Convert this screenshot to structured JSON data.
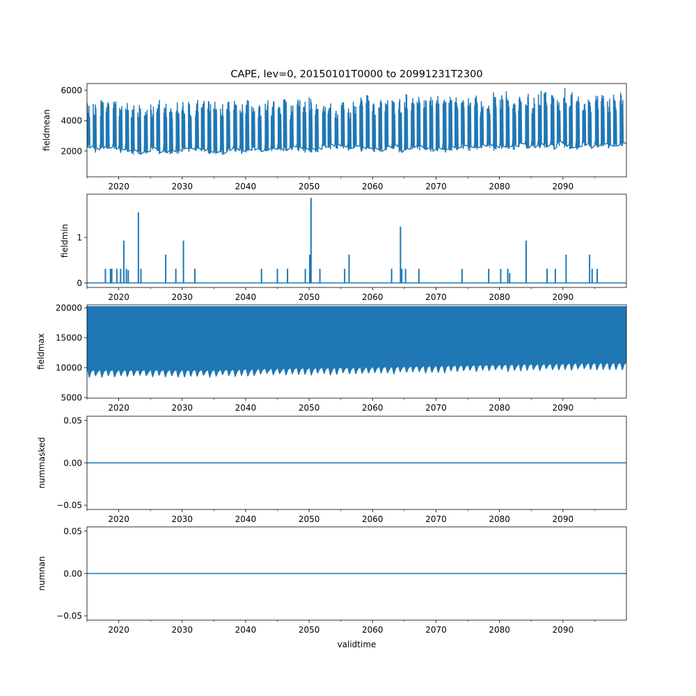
{
  "figure": {
    "title": "CAPE, lev=0, 20150101T0000 to 20991231T2300"
  },
  "chart_data": [
    {
      "type": "line",
      "ylabel": "fieldmean",
      "xlabel": "",
      "xlim": [
        2015.0,
        2100.0
      ],
      "xticks": [
        2020,
        2030,
        2040,
        2050,
        2060,
        2070,
        2080,
        2090
      ],
      "ylim": [
        300,
        6450
      ],
      "yticks": [
        2000,
        4000,
        6000
      ],
      "ytick_labels": [
        "2000",
        "4000",
        "6000"
      ],
      "color": "#1f77b4",
      "series": [
        {
          "pattern": "annual_oscillation",
          "x": [
            2015,
            2025,
            2035,
            2045,
            2055,
            2065,
            2075,
            2085,
            2095,
            2100
          ],
          "upper": [
            5250,
            5050,
            5250,
            5300,
            5300,
            5450,
            5500,
            5650,
            5750,
            5750
          ],
          "lower": [
            2100,
            1900,
            1900,
            2000,
            2050,
            2050,
            2100,
            2200,
            2250,
            2300
          ],
          "peaks": [
            {
              "x": 2090.3,
              "y": 6150
            }
          ]
        }
      ]
    },
    {
      "type": "line",
      "ylabel": "fieldmin",
      "xlabel": "",
      "xlim": [
        2015.0,
        2100.0
      ],
      "xticks": [
        2020,
        2030,
        2040,
        2050,
        2060,
        2070,
        2080,
        2090
      ],
      "ylim": [
        -0.1,
        1.95
      ],
      "yticks": [
        0,
        1
      ],
      "ytick_labels": [
        "0",
        "1"
      ],
      "color": "#1f77b4",
      "series": [
        {
          "pattern": "spikes",
          "baseline": 0,
          "spikes": [
            {
              "x": 2017.9,
              "y": 0.31
            },
            {
              "x": 2018.7,
              "y": 0.31
            },
            {
              "x": 2018.9,
              "y": 0.31
            },
            {
              "x": 2019.7,
              "y": 0.31
            },
            {
              "x": 2020.3,
              "y": 0.31
            },
            {
              "x": 2020.8,
              "y": 0.93
            },
            {
              "x": 2021.2,
              "y": 0.31
            },
            {
              "x": 2021.5,
              "y": 0.28
            },
            {
              "x": 2023.1,
              "y": 1.55
            },
            {
              "x": 2023.5,
              "y": 0.31
            },
            {
              "x": 2027.4,
              "y": 0.62
            },
            {
              "x": 2029.0,
              "y": 0.31
            },
            {
              "x": 2030.2,
              "y": 0.93
            },
            {
              "x": 2032.0,
              "y": 0.31
            },
            {
              "x": 2042.5,
              "y": 0.31
            },
            {
              "x": 2045.0,
              "y": 0.31
            },
            {
              "x": 2046.6,
              "y": 0.31
            },
            {
              "x": 2049.4,
              "y": 0.31
            },
            {
              "x": 2050.1,
              "y": 0.62
            },
            {
              "x": 2050.3,
              "y": 1.87
            },
            {
              "x": 2051.7,
              "y": 0.31
            },
            {
              "x": 2055.6,
              "y": 0.31
            },
            {
              "x": 2056.3,
              "y": 0.62
            },
            {
              "x": 2063.0,
              "y": 0.31
            },
            {
              "x": 2064.4,
              "y": 1.24
            },
            {
              "x": 2064.6,
              "y": 0.31
            },
            {
              "x": 2065.2,
              "y": 0.31
            },
            {
              "x": 2067.3,
              "y": 0.31
            },
            {
              "x": 2074.1,
              "y": 0.31
            },
            {
              "x": 2078.3,
              "y": 0.31
            },
            {
              "x": 2080.2,
              "y": 0.31
            },
            {
              "x": 2081.3,
              "y": 0.31
            },
            {
              "x": 2081.6,
              "y": 0.22
            },
            {
              "x": 2084.2,
              "y": 0.93
            },
            {
              "x": 2087.5,
              "y": 0.31
            },
            {
              "x": 2088.8,
              "y": 0.31
            },
            {
              "x": 2090.5,
              "y": 0.62
            },
            {
              "x": 2094.2,
              "y": 0.62
            },
            {
              "x": 2094.6,
              "y": 0.31
            },
            {
              "x": 2095.4,
              "y": 0.31
            }
          ]
        }
      ]
    },
    {
      "type": "line",
      "ylabel": "fieldmax",
      "xlabel": "",
      "xlim": [
        2015.0,
        2100.0
      ],
      "xticks": [
        2020,
        2030,
        2040,
        2050,
        2060,
        2070,
        2080,
        2090
      ],
      "ylim": [
        4900,
        20500
      ],
      "yticks": [
        5000,
        10000,
        15000,
        20000
      ],
      "ytick_labels": [
        "5000",
        "10000",
        "15000",
        "20000"
      ],
      "color": "#1f77b4",
      "series": [
        {
          "pattern": "dense_band",
          "x": [
            2015,
            2025,
            2035,
            2045,
            2055,
            2065,
            2075,
            2085,
            2095,
            2100
          ],
          "upper": [
            20200,
            20200,
            20200,
            20200,
            20200,
            20200,
            20200,
            20200,
            20200,
            20200
          ],
          "lower": [
            8400,
            8400,
            8400,
            8700,
            8800,
            9000,
            9200,
            9400,
            9600,
            9600
          ],
          "peaks": [
            {
              "x": 2046.3,
              "y": 12600
            },
            {
              "x": 2082.1,
              "y": 13200
            },
            {
              "x": 2093.5,
              "y": 13800
            }
          ]
        }
      ]
    },
    {
      "type": "line",
      "ylabel": "nummasked",
      "xlabel": "",
      "xlim": [
        2015.0,
        2100.0
      ],
      "xticks": [
        2020,
        2030,
        2040,
        2050,
        2060,
        2070,
        2080,
        2090
      ],
      "ylim": [
        -0.055,
        0.055
      ],
      "yticks": [
        -0.05,
        0.0,
        0.05
      ],
      "ytick_labels": [
        "−0.05",
        "0.00",
        "0.05"
      ],
      "color": "#1f77b4",
      "series": [
        {
          "pattern": "constant",
          "x": [
            2015,
            2100
          ],
          "values": [
            0,
            0
          ]
        }
      ]
    },
    {
      "type": "line",
      "ylabel": "numnan",
      "xlabel": "validtime",
      "xlim": [
        2015.0,
        2100.0
      ],
      "xticks": [
        2020,
        2030,
        2040,
        2050,
        2060,
        2070,
        2080,
        2090
      ],
      "ylim": [
        -0.055,
        0.055
      ],
      "yticks": [
        -0.05,
        0.0,
        0.05
      ],
      "ytick_labels": [
        "−0.05",
        "0.00",
        "0.05"
      ],
      "color": "#1f77b4",
      "series": [
        {
          "pattern": "constant",
          "x": [
            2015,
            2100
          ],
          "values": [
            0,
            0
          ]
        }
      ]
    }
  ]
}
